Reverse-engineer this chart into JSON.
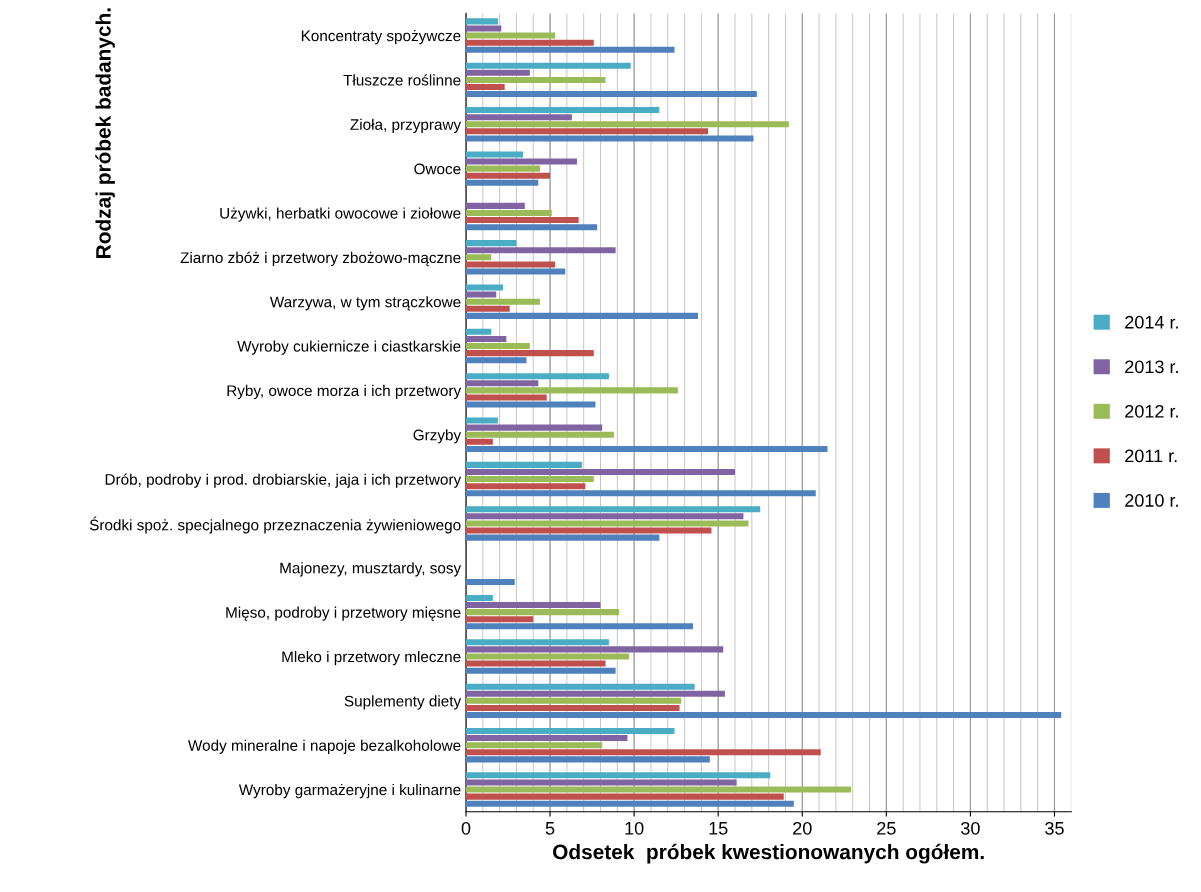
{
  "chart_data": {
    "type": "bar",
    "orientation": "horizontal",
    "xlabel": "Odsetek  próbek kwestionowanych ogółem.",
    "ylabel": "Rodzaj próbek badanych.",
    "categories": [
      "Koncentraty spożywcze",
      "Tłuszcze roślinne",
      "Zioła, przyprawy",
      "Owoce",
      "Używki, herbatki owocowe i ziołowe",
      "Ziarno zbóż i przetwory zbożowo-mączne",
      "Warzywa, w tym strączkowe",
      "Wyroby cukiernicze i ciastkarskie",
      "Ryby, owoce morza i ich przetwory",
      "Grzyby",
      "Drób, podroby i prod. drobiarskie, jaja i ich przetwory",
      "Środki spoż. specjalnego przeznaczenia żywieniowego",
      "Majonezy, musztardy, sosy",
      "Mięso, podroby i przetwory mięsne",
      "Mleko i przetwory mleczne",
      "Suplementy diety",
      "Wody mineralne i napoje bezalkoholowe",
      "Wyroby garmażeryjne i kulinarne"
    ],
    "series": [
      {
        "name": "2014 r.",
        "color": "#4bacc6",
        "values": [
          1.9,
          9.8,
          11.5,
          3.4,
          null,
          3.0,
          2.2,
          1.5,
          8.5,
          1.9,
          6.9,
          17.5,
          null,
          1.6,
          8.5,
          13.6,
          12.4,
          18.1
        ]
      },
      {
        "name": "2013 r.",
        "color": "#8064a2",
        "values": [
          2.1,
          3.8,
          6.3,
          6.6,
          3.5,
          8.9,
          1.8,
          2.4,
          4.3,
          8.1,
          16.0,
          16.5,
          null,
          8.0,
          15.3,
          15.4,
          9.6,
          16.1
        ]
      },
      {
        "name": "2012 r.",
        "color": "#9bbb59",
        "values": [
          5.3,
          8.3,
          19.2,
          4.4,
          5.1,
          1.5,
          4.4,
          3.8,
          12.6,
          8.8,
          7.6,
          16.8,
          null,
          9.1,
          9.7,
          12.8,
          8.1,
          22.9
        ]
      },
      {
        "name": "2011 r.",
        "color": "#c0504d",
        "values": [
          7.6,
          2.3,
          14.4,
          5.0,
          6.7,
          5.3,
          2.6,
          7.6,
          4.8,
          1.6,
          7.1,
          14.6,
          null,
          4.0,
          8.3,
          12.7,
          21.1,
          18.9
        ]
      },
      {
        "name": "2010 r.",
        "color": "#4f81bd",
        "values": [
          12.4,
          17.3,
          17.1,
          4.3,
          7.8,
          5.9,
          13.8,
          3.6,
          7.7,
          21.5,
          20.8,
          11.5,
          2.9,
          13.5,
          8.9,
          35.4,
          14.5,
          19.5
        ]
      }
    ],
    "xlim": [
      0,
      36
    ],
    "xticks": [
      0,
      5,
      10,
      15,
      20,
      25,
      30,
      35
    ],
    "grid": "x",
    "legend": "right"
  }
}
